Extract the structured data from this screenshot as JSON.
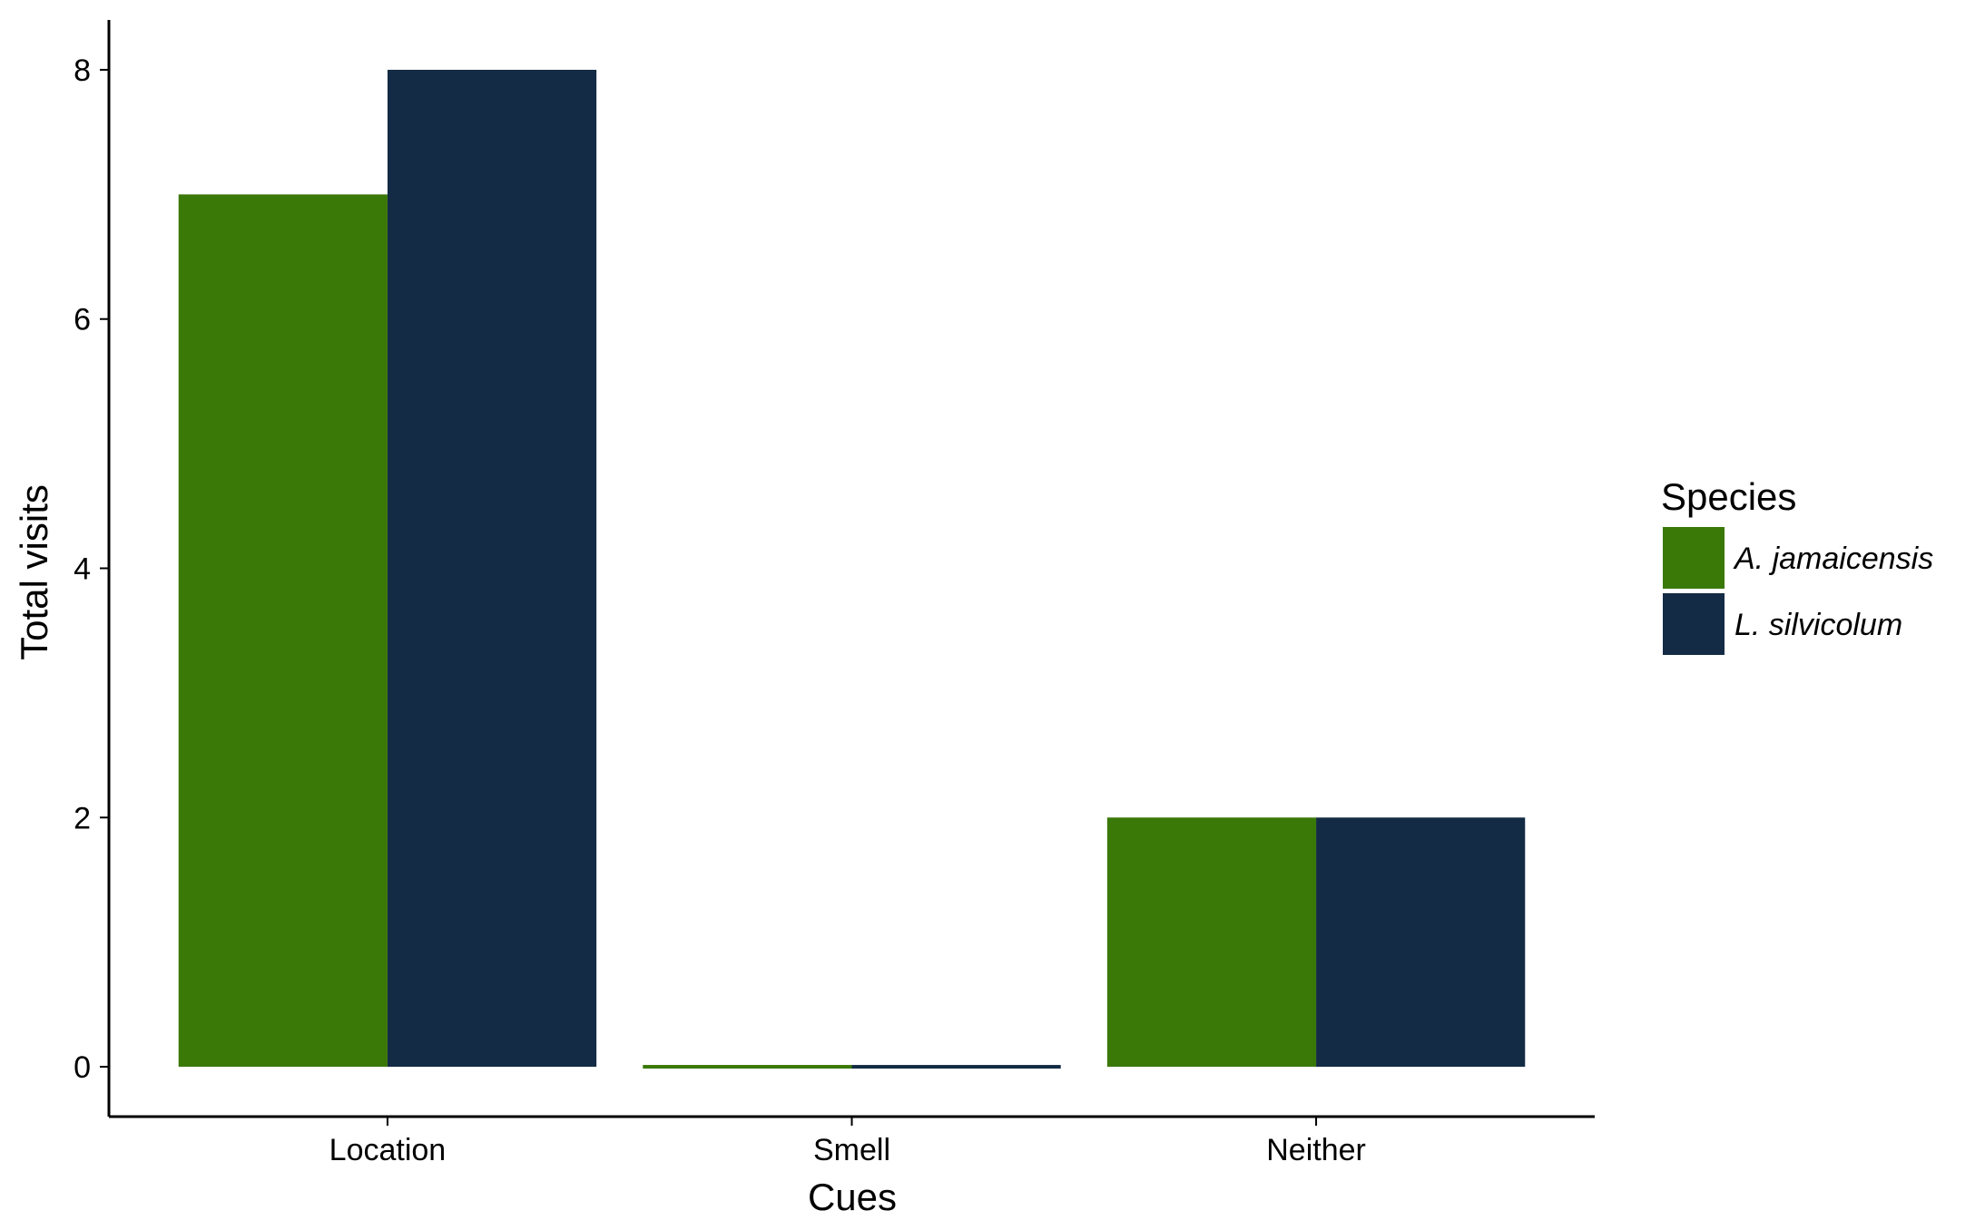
{
  "chart_data": {
    "type": "bar",
    "title": "",
    "xlabel": "Cues",
    "ylabel": "Total visits",
    "categories": [
      "Location",
      "Smell",
      "Neither"
    ],
    "series": [
      {
        "name": "A. jamaicensis",
        "color": "#3a7807",
        "values": [
          7,
          0,
          2
        ]
      },
      {
        "name": "L. silvicolum",
        "color": "#132b44",
        "values": [
          8,
          0,
          2
        ]
      }
    ],
    "ylim": [
      -0.4,
      8.4
    ],
    "yticks": [
      0,
      2,
      4,
      6,
      8
    ],
    "grid": false,
    "legend": {
      "title": "Species",
      "placement": "right"
    }
  }
}
